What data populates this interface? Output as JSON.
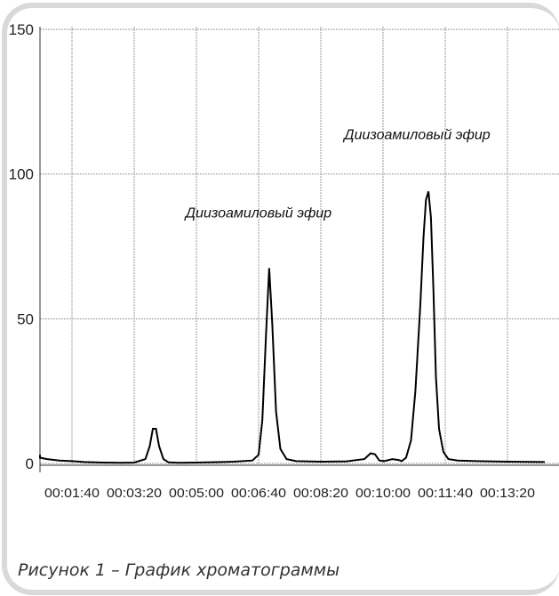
{
  "colors": {
    "line": "#000000",
    "grid": "#9a9a9a",
    "frame": "#d9d9d9",
    "caption": "#333333"
  },
  "chart_data": {
    "type": "line",
    "y_ticks": [
      0,
      50,
      100,
      150
    ],
    "ylim": [
      0,
      150
    ],
    "x_ticks": [
      "00:01:40",
      "00:03:20",
      "00:05:00",
      "00:06:40",
      "00:08:20",
      "00:10:00",
      "00:11:40",
      "00:13:20"
    ],
    "xlim": [
      "00:00:20",
      "00:14:20"
    ],
    "grid": true,
    "series": [
      {
        "x": [
          "00:00:20",
          "00:00:40",
          "00:01:00",
          "00:01:20",
          "00:01:40",
          "00:02:00",
          "00:02:30",
          "00:03:00",
          "00:03:20",
          "00:03:38",
          "00:03:45",
          "00:03:50",
          "00:03:55",
          "00:04:00",
          "00:04:07",
          "00:04:15",
          "00:04:30",
          "00:05:00",
          "00:06:00",
          "00:06:30",
          "00:06:40",
          "00:06:46",
          "00:06:52",
          "00:06:57",
          "00:07:02",
          "00:07:08",
          "00:07:15",
          "00:07:25",
          "00:07:40",
          "00:08:20",
          "00:09:00",
          "00:09:30",
          "00:09:40",
          "00:09:47",
          "00:09:54",
          "00:10:02",
          "00:10:15",
          "00:10:25",
          "00:10:30",
          "00:10:37",
          "00:10:45",
          "00:10:52",
          "00:11:00",
          "00:11:05",
          "00:11:09",
          "00:11:13",
          "00:11:17",
          "00:11:21",
          "00:11:25",
          "00:11:30",
          "00:11:37",
          "00:11:45",
          "00:12:00",
          "00:12:30",
          "00:13:20",
          "00:14:20"
        ],
        "y": [
          3,
          2,
          1.5,
          1,
          0.8,
          0.5,
          0.3,
          0.2,
          0.3,
          1.5,
          6,
          12,
          12,
          6,
          1.5,
          0.4,
          0.2,
          0.3,
          0.6,
          1,
          3,
          15,
          45,
          67.5,
          48,
          18,
          5,
          1.5,
          0.8,
          0.6,
          0.7,
          1.5,
          3.5,
          3.2,
          1,
          0.8,
          1.5,
          1.2,
          0.8,
          2,
          8,
          25,
          55,
          78,
          91,
          94,
          85,
          60,
          30,
          12,
          4,
          1.5,
          1,
          0.8,
          0.6,
          0.5
        ]
      }
    ],
    "annotations": [
      {
        "text": "Диизоамиловый эфир",
        "x": "00:06:40",
        "y": 85
      },
      {
        "text": "Диизоамиловый эфир",
        "x": "00:10:55",
        "y": 112
      }
    ]
  },
  "caption": "Рисунок 1 – График хроматограммы"
}
